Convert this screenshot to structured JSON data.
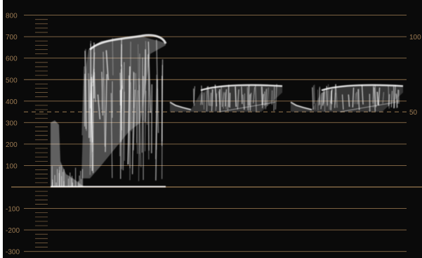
{
  "scope": {
    "type": "waveform-parade",
    "left_scale_labels": [
      "800",
      "700",
      "600",
      "500",
      "400",
      "300",
      "200",
      "100",
      "-100",
      "-200",
      "-300"
    ],
    "right_scale_labels": [
      "100",
      "50"
    ],
    "scale_color": "#9b7a52",
    "trace_color": "#ffffff",
    "background_color": "#0a0a0a"
  },
  "chart_data": {
    "type": "area",
    "ylim": [
      -320,
      820
    ],
    "left_axis_ticks": [
      800,
      700,
      600,
      500,
      400,
      300,
      200,
      100,
      0,
      -100,
      -200,
      -300
    ],
    "right_axis_ticks": [
      {
        "label": "100",
        "value": 700
      },
      {
        "label": "50",
        "value": 350
      }
    ],
    "dashed_reference_value": 350,
    "series": [
      {
        "channel_index": 1,
        "approx_range": [
          0,
          700
        ]
      },
      {
        "channel_index": 2,
        "approx_range": [
          350,
          480
        ]
      },
      {
        "channel_index": 3,
        "approx_range": [
          350,
          480
        ]
      }
    ]
  }
}
